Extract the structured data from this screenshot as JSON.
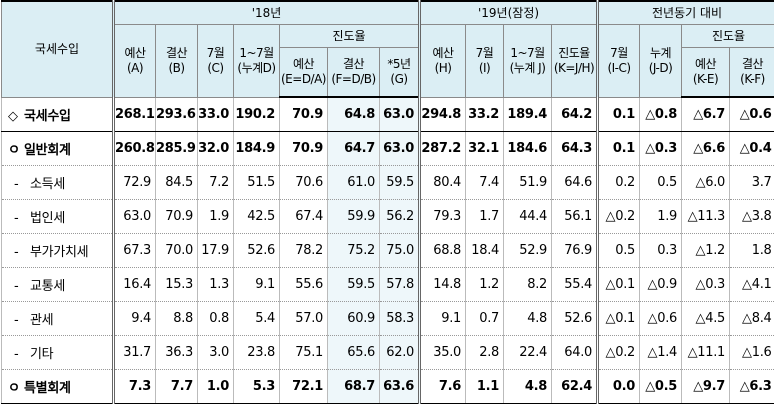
{
  "header": {
    "corner": "국세수입",
    "y2018": "'18년",
    "y2019": "'19년(잠정)",
    "yoy": "전년동기 대비",
    "progress_2018": "진도율",
    "progress_yoy": "진도율",
    "columns": [
      [
        "예산",
        "(A)"
      ],
      [
        "결산",
        "(B)"
      ],
      [
        "7월",
        "(C)"
      ],
      [
        "1~7월",
        "(누계D)"
      ],
      [
        "예산",
        "(E=D/A)"
      ],
      [
        "결산",
        "(F=D/B)"
      ],
      [
        "*5년",
        "(G)"
      ],
      [
        "예산",
        "(H)"
      ],
      [
        "7월",
        "(I)"
      ],
      [
        "1~7월",
        "(누계 J)"
      ],
      [
        "진도율",
        "(K=J/H)"
      ],
      [
        "7월",
        "(I-C)"
      ],
      [
        "누계",
        "(J-D)"
      ],
      [
        "예산",
        "(K-E)"
      ],
      [
        "결산",
        "(K-F)"
      ]
    ]
  },
  "rows": [
    {
      "marker": "◇",
      "label": "국세수입",
      "cells": [
        "268.1",
        "293.6",
        "33.0",
        "190.2",
        "70.9",
        "64.8",
        "63.0",
        "294.8",
        "33.2",
        "189.4",
        "64.2",
        "0.1",
        "△0.8",
        "△6.7",
        "△0.6"
      ]
    },
    {
      "marker": "ㅇ",
      "label": "일반회계",
      "cells": [
        "260.8",
        "285.9",
        "32.0",
        "184.9",
        "70.9",
        "64.7",
        "63.0",
        "287.2",
        "32.1",
        "184.6",
        "64.3",
        "0.1",
        "△0.3",
        "△6.6",
        "△0.4"
      ]
    },
    {
      "marker": "-",
      "label": "소득세",
      "cells": [
        "72.9",
        "84.5",
        "7.2",
        "51.5",
        "70.6",
        "61.0",
        "59.5",
        "80.4",
        "7.4",
        "51.9",
        "64.6",
        "0.2",
        "0.5",
        "△6.0",
        "3.7"
      ]
    },
    {
      "marker": "-",
      "label": "법인세",
      "cells": [
        "63.0",
        "70.9",
        "1.9",
        "42.5",
        "67.4",
        "59.9",
        "56.2",
        "79.3",
        "1.7",
        "44.4",
        "56.1",
        "△0.2",
        "1.9",
        "△11.3",
        "△3.8"
      ]
    },
    {
      "marker": "-",
      "label": "부가가치세",
      "cells": [
        "67.3",
        "70.0",
        "17.9",
        "52.6",
        "78.2",
        "75.2",
        "75.0",
        "68.8",
        "18.4",
        "52.9",
        "76.9",
        "0.5",
        "0.3",
        "△1.2",
        "1.8"
      ]
    },
    {
      "marker": "-",
      "label": "교통세",
      "cells": [
        "16.4",
        "15.3",
        "1.3",
        "9.1",
        "55.6",
        "59.5",
        "57.8",
        "14.8",
        "1.2",
        "8.2",
        "55.4",
        "△0.1",
        "△0.9",
        "△0.3",
        "△4.1"
      ]
    },
    {
      "marker": "-",
      "label": "관세",
      "cells": [
        "9.4",
        "8.8",
        "0.8",
        "5.4",
        "57.0",
        "60.9",
        "58.3",
        "9.1",
        "0.7",
        "4.8",
        "52.6",
        "△0.1",
        "△0.6",
        "△4.5",
        "△8.4"
      ]
    },
    {
      "marker": "-",
      "label": "기타",
      "cells": [
        "31.7",
        "36.3",
        "3.0",
        "23.8",
        "75.1",
        "65.6",
        "62.0",
        "35.0",
        "2.8",
        "22.4",
        "64.0",
        "△0.2",
        "△1.4",
        "△11.1",
        "△1.6"
      ]
    },
    {
      "marker": "ㅇ",
      "label": "특별회계",
      "cells": [
        "7.3",
        "7.7",
        "1.0",
        "5.3",
        "72.1",
        "68.7",
        "63.6",
        "7.6",
        "1.1",
        "4.8",
        "62.4",
        "0.0",
        "△0.5",
        "△9.7",
        "△6.3"
      ]
    }
  ]
}
